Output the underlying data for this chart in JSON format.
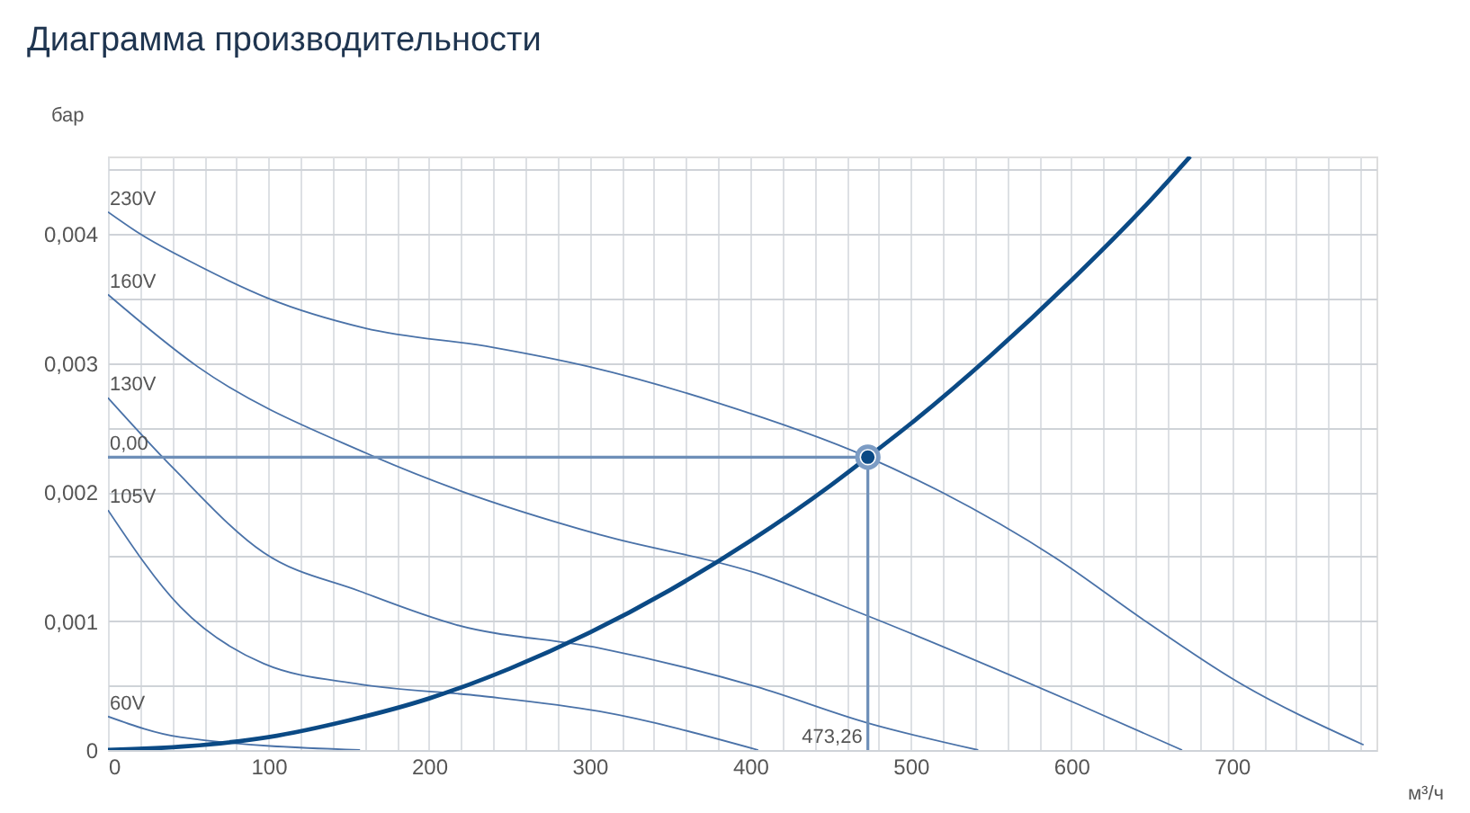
{
  "chart_data": {
    "type": "line",
    "title": "Диаграмма производительности",
    "xlabel": "м³/ч",
    "ylabel": "бар",
    "xlim": [
      0,
      790
    ],
    "ylim": [
      0,
      0.0046
    ],
    "xticks": [
      0,
      {
        "value": 20,
        "label": null
      },
      {
        "value": 40,
        "label": null
      },
      {
        "value": 60,
        "label": null
      },
      {
        "value": 80,
        "label": null
      },
      100,
      {
        "value": 120,
        "label": null
      },
      {
        "value": 140,
        "label": null
      },
      {
        "value": 160,
        "label": null
      },
      {
        "value": 180,
        "label": null
      },
      200,
      {
        "value": 220,
        "label": null
      },
      {
        "value": 240,
        "label": null
      },
      {
        "value": 260,
        "label": null
      },
      {
        "value": 280,
        "label": null
      },
      300,
      {
        "value": 320,
        "label": null
      },
      {
        "value": 340,
        "label": null
      },
      {
        "value": 360,
        "label": null
      },
      {
        "value": 380,
        "label": null
      },
      400,
      {
        "value": 420,
        "label": null
      },
      {
        "value": 440,
        "label": null
      },
      {
        "value": 460,
        "label": null
      },
      {
        "value": 480,
        "label": null
      },
      500,
      {
        "value": 520,
        "label": null
      },
      {
        "value": 540,
        "label": null
      },
      {
        "value": 560,
        "label": null
      },
      {
        "value": 580,
        "label": null
      },
      600,
      {
        "value": 620,
        "label": null
      },
      {
        "value": 640,
        "label": null
      },
      {
        "value": 660,
        "label": null
      },
      {
        "value": 680,
        "label": null
      },
      700,
      {
        "value": 720,
        "label": null
      },
      {
        "value": 740,
        "label": null
      },
      {
        "value": 760,
        "label": null
      },
      {
        "value": 780,
        "label": null
      }
    ],
    "yticks": [
      0,
      {
        "value": 0.0005,
        "label": null
      },
      {
        "value": 0.001,
        "label": "0,001"
      },
      {
        "value": 0.0015,
        "label": null
      },
      {
        "value": 0.002,
        "label": "0,002"
      },
      {
        "value": 0.0025,
        "label": null
      },
      {
        "value": 0.003,
        "label": "0,003"
      },
      {
        "value": 0.0035,
        "label": null
      },
      {
        "value": 0.004,
        "label": "0,004"
      },
      {
        "value": 0.0045,
        "label": null
      }
    ],
    "grid": true,
    "line_style": "solid",
    "marker": "none",
    "series": [
      {
        "name": "230V",
        "color": "#4a72a8",
        "x": [
          0,
          20,
          57,
          100,
          160,
          240,
          300,
          380,
          473.26,
          519,
          590,
          646,
          702,
          782
        ],
        "values": [
          0.00417,
          0.004,
          0.00375,
          0.0035,
          0.00327,
          0.00312,
          0.00297,
          0.00269,
          0.00227,
          0.002,
          0.00149,
          0.001,
          0.00054,
          4e-05
        ]
      },
      {
        "name": "160V",
        "color": "#4a72a8",
        "x": [
          0,
          56,
          161,
          217,
          306,
          404,
          473,
          605,
          669
        ],
        "values": [
          0.00353,
          0.00297,
          0.0023,
          0.00202,
          0.00167,
          0.00137,
          0.00104,
          0.00035,
          0
        ]
      },
      {
        "name": "130V",
        "color": "#4a72a8",
        "x": [
          0,
          41,
          97,
          157,
          217,
          306,
          404,
          473,
          542
        ],
        "values": [
          0.00273,
          0.00218,
          0.00153,
          0.00123,
          0.00097,
          0.00079,
          0.00049,
          0.00021,
          0
        ]
      },
      {
        "name": "105V",
        "color": "#4a72a8",
        "x": [
          0,
          45,
          97,
          157,
          232,
          306,
          405
        ],
        "values": [
          0.00186,
          0.00111,
          0.00067,
          0.00051,
          0.00042,
          0.0003,
          0
        ]
      },
      {
        "name": "60V",
        "color": "#4a72a8",
        "x": [
          0,
          45,
          157
        ],
        "values": [
          0.00026,
          0.0001,
          0
        ]
      },
      {
        "color": "#0b4a85",
        "x": [
          0,
          50,
          100,
          150,
          200,
          250,
          300,
          350,
          400,
          450,
          473.26,
          500,
          550,
          600,
          650,
          674
        ],
        "values": [
          0,
          3e-05,
          0.0001,
          0.00023,
          0.0004,
          0.00063,
          0.00091,
          0.00124,
          0.00162,
          0.00205,
          0.00227,
          0.00253,
          0.00306,
          0.00364,
          0.00427,
          0.0046
        ]
      },
      {
        "color": "#6e8fb8",
        "x": [
          0,
          473.26,
          473.26
        ],
        "values": [
          0.00227,
          0.00227,
          0
        ]
      },
      {
        "color": "#0b4a85",
        "type": "scatter",
        "marker": "circle",
        "x": [
          473.26
        ],
        "values": [
          0.00227
        ]
      }
    ],
    "annotations": [
      {
        "text": "0,00",
        "x": 0,
        "y": 0.00227
      },
      {
        "text": "473,26",
        "x": 473.26,
        "y": 0
      }
    ]
  }
}
